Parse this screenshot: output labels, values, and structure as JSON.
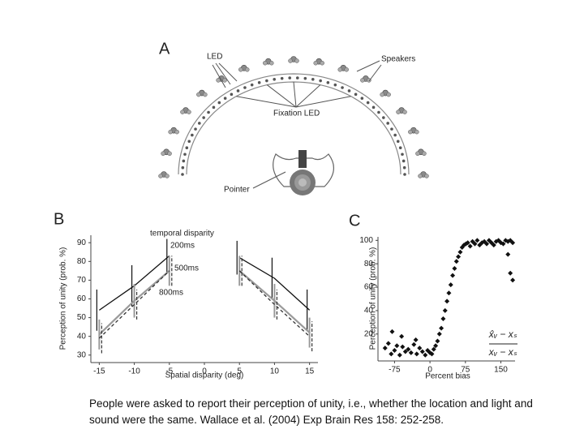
{
  "diagram": {
    "panel_label": "A",
    "labels": [
      "LED",
      "Speakers",
      "Fixation LED",
      "Pointer"
    ]
  },
  "chart_data": [
    {
      "type": "line",
      "panel_label": "B",
      "legend_title": "temporal disparity",
      "xlabel": "Spatial disparity (deg)",
      "ylabel": "Perception of unity (prob. %)",
      "x": [
        -15,
        -10,
        -5,
        0,
        5,
        10,
        15
      ],
      "series": [
        {
          "name": "200ms",
          "color": "#111111",
          "style": "solid",
          "values": [
            54,
            67,
            83,
            null,
            82,
            71,
            54
          ],
          "errors": [
            11,
            11,
            9,
            null,
            9,
            11,
            11
          ]
        },
        {
          "name": "500ms",
          "color": "#9a9a9a",
          "style": "solid",
          "values": [
            41,
            59,
            75,
            null,
            75,
            59,
            42
          ],
          "errors": [
            8,
            9,
            8,
            null,
            8,
            9,
            8
          ]
        },
        {
          "name": "800ms",
          "color": "#333333",
          "style": "dashed",
          "values": [
            39,
            57,
            75,
            null,
            75,
            57,
            40
          ],
          "errors": [
            8,
            8,
            8,
            null,
            8,
            8,
            8
          ]
        }
      ],
      "xlim": [
        -16.2,
        16.2
      ],
      "xticks": [
        -15,
        -10,
        -5,
        0,
        5,
        10,
        15
      ],
      "ylim": [
        26,
        94
      ],
      "yticks": [
        30,
        40,
        50,
        60,
        70,
        80,
        90
      ]
    },
    {
      "type": "scatter",
      "panel_label": "C",
      "color": "#111111",
      "xlabel": "Percent bias",
      "ylabel": "Perception of unity (prob. %)",
      "formula_numerator": "x̂ᵥ − xₛ",
      "formula_denominator": "xᵥ − xₛ",
      "x": [
        -95,
        -88,
        -82,
        -75,
        -70,
        -64,
        -58,
        -52,
        -46,
        -40,
        -34,
        -28,
        -22,
        -16,
        -10,
        -5,
        0,
        4,
        8,
        12,
        16,
        20,
        24,
        28,
        32,
        36,
        40,
        44,
        48,
        52,
        56,
        60,
        64,
        68,
        72,
        76,
        80,
        85,
        90,
        95,
        100,
        105,
        110,
        115,
        120,
        125,
        130,
        135,
        140,
        145,
        150,
        155,
        160,
        165,
        170,
        175,
        165,
        170,
        175,
        -80,
        -60,
        -30
      ],
      "values": [
        8,
        12,
        3,
        6,
        10,
        2,
        9,
        5,
        7,
        4,
        11,
        3,
        8,
        5,
        2,
        6,
        4,
        3,
        7,
        10,
        14,
        20,
        25,
        33,
        40,
        48,
        55,
        62,
        70,
        76,
        82,
        86,
        90,
        94,
        96,
        97,
        98,
        95,
        99,
        97,
        100,
        96,
        98,
        99,
        97,
        100,
        98,
        96,
        99,
        100,
        98,
        97,
        100,
        99,
        100,
        98,
        88,
        72,
        66,
        22,
        18,
        15
      ],
      "xlim": [
        -110,
        180
      ],
      "xticks": [
        -75,
        0,
        75,
        150
      ],
      "ylim": [
        -3,
        103
      ],
      "yticks": [
        20,
        40,
        60,
        80,
        100
      ]
    }
  ],
  "caption": "People were asked to report their perception of unity, i.e., whether the location and light and sound were the same. Wallace et al. (2004) Exp Brain Res 158: 252-258."
}
